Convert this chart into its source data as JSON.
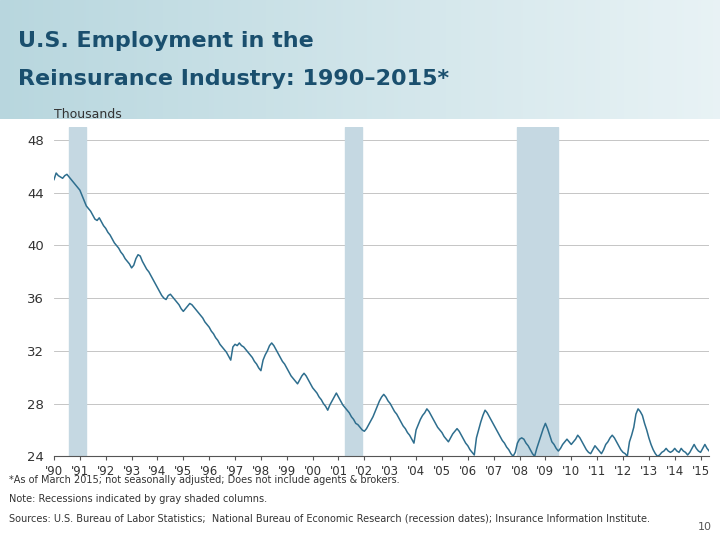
{
  "title_line1": "U.S. Employment in the",
  "title_line2": "Reinsurance Industry: 1990–2015*",
  "ylabel": "Thousands",
  "footnote1": "*As of March 2015; not seasonally adjusted; Does not include agents & brokers.",
  "footnote2": "Note: Recessions indicated by gray shaded columns.",
  "footnote3": "Sources: U.S. Bureau of Labor Statistics;  National Bureau of Economic Research (recession dates); Insurance Information Institute.",
  "page_num": "10",
  "line_color": "#2E6E8E",
  "line_width": 1.1,
  "recession_color": "#C5D8E2",
  "recession_alpha": 1.0,
  "recessions": [
    {
      "start": 1990.583,
      "end": 1991.25
    },
    {
      "start": 2001.25,
      "end": 2001.916
    },
    {
      "start": 2007.916,
      "end": 2009.5
    }
  ],
  "ylim": [
    24,
    49
  ],
  "yticks": [
    24,
    28,
    32,
    36,
    40,
    44,
    48
  ],
  "xlim_start": 1990.0,
  "xlim_end": 2015.333,
  "xtick_years": [
    1990,
    1991,
    1992,
    1993,
    1994,
    1995,
    1996,
    1997,
    1998,
    1999,
    2000,
    2001,
    2002,
    2003,
    2004,
    2005,
    2006,
    2007,
    2008,
    2009,
    2010,
    2011,
    2012,
    2013,
    2014,
    2015
  ],
  "xtick_labels": [
    "'90",
    "'91",
    "'92",
    "'93",
    "'94",
    "'95",
    "'96",
    "'97",
    "'98",
    "'99",
    "'00",
    "'01",
    "'02",
    "'03",
    "'04",
    "'05",
    "'06",
    "'07",
    "'08",
    "'09",
    "'10",
    "'11",
    "'12",
    "'13",
    "'14",
    "'15"
  ],
  "bg_color": "#FFFFFF",
  "employment_data": [
    45.0,
    45.5,
    45.3,
    45.2,
    45.1,
    45.3,
    45.4,
    45.2,
    45.0,
    44.8,
    44.6,
    44.4,
    44.2,
    43.8,
    43.4,
    43.0,
    42.8,
    42.6,
    42.3,
    42.0,
    41.9,
    42.1,
    41.8,
    41.5,
    41.3,
    41.0,
    40.8,
    40.5,
    40.2,
    40.0,
    39.8,
    39.5,
    39.3,
    39.0,
    38.8,
    38.6,
    38.3,
    38.5,
    39.0,
    39.3,
    39.2,
    38.8,
    38.5,
    38.2,
    38.0,
    37.7,
    37.4,
    37.1,
    36.8,
    36.5,
    36.2,
    36.0,
    35.9,
    36.2,
    36.3,
    36.1,
    35.9,
    35.7,
    35.5,
    35.2,
    35.0,
    35.2,
    35.4,
    35.6,
    35.5,
    35.3,
    35.1,
    34.9,
    34.7,
    34.5,
    34.2,
    34.0,
    33.8,
    33.5,
    33.3,
    33.0,
    32.8,
    32.5,
    32.3,
    32.1,
    31.9,
    31.6,
    31.3,
    32.3,
    32.5,
    32.4,
    32.6,
    32.4,
    32.3,
    32.1,
    31.9,
    31.7,
    31.5,
    31.2,
    31.0,
    30.7,
    30.5,
    31.3,
    31.7,
    32.0,
    32.4,
    32.6,
    32.4,
    32.1,
    31.8,
    31.5,
    31.2,
    31.0,
    30.7,
    30.4,
    30.1,
    29.9,
    29.7,
    29.5,
    29.8,
    30.1,
    30.3,
    30.1,
    29.8,
    29.5,
    29.2,
    29.0,
    28.8,
    28.5,
    28.3,
    28.0,
    27.8,
    27.5,
    27.9,
    28.2,
    28.5,
    28.8,
    28.5,
    28.2,
    27.9,
    27.7,
    27.5,
    27.3,
    27.0,
    26.8,
    26.5,
    26.4,
    26.2,
    26.0,
    25.9,
    26.1,
    26.4,
    26.7,
    27.0,
    27.4,
    27.8,
    28.2,
    28.5,
    28.7,
    28.5,
    28.2,
    28.0,
    27.7,
    27.4,
    27.2,
    26.9,
    26.6,
    26.3,
    26.1,
    25.8,
    25.6,
    25.3,
    25.0,
    26.0,
    26.4,
    26.8,
    27.1,
    27.3,
    27.6,
    27.4,
    27.1,
    26.8,
    26.5,
    26.2,
    26.0,
    25.8,
    25.5,
    25.3,
    25.1,
    25.4,
    25.7,
    25.9,
    26.1,
    25.9,
    25.6,
    25.3,
    25.0,
    24.8,
    24.5,
    24.3,
    24.1,
    25.4,
    26.0,
    26.6,
    27.1,
    27.5,
    27.3,
    27.0,
    26.7,
    26.4,
    26.1,
    25.8,
    25.5,
    25.2,
    25.0,
    24.7,
    24.5,
    24.2,
    24.0,
    24.3,
    25.0,
    25.3,
    25.4,
    25.3,
    25.0,
    24.8,
    24.5,
    24.2,
    24.0,
    24.6,
    25.1,
    25.6,
    26.1,
    26.5,
    26.1,
    25.6,
    25.1,
    24.9,
    24.6,
    24.4,
    24.6,
    24.9,
    25.1,
    25.3,
    25.1,
    24.9,
    25.1,
    25.3,
    25.6,
    25.4,
    25.1,
    24.8,
    24.5,
    24.3,
    24.2,
    24.5,
    24.8,
    24.6,
    24.4,
    24.2,
    24.5,
    24.9,
    25.1,
    25.4,
    25.6,
    25.4,
    25.1,
    24.8,
    24.5,
    24.3,
    24.2,
    24.0,
    25.1,
    25.6,
    26.2,
    27.2,
    27.6,
    27.4,
    27.1,
    26.5,
    26.0,
    25.4,
    24.9,
    24.5,
    24.2,
    24.0,
    24.1,
    24.3,
    24.4,
    24.6,
    24.4,
    24.3,
    24.4,
    24.6,
    24.4,
    24.3,
    24.6,
    24.4,
    24.3,
    24.1,
    24.3,
    24.6,
    24.9,
    24.6,
    24.4,
    24.3,
    24.6,
    24.9,
    24.6,
    24.4
  ]
}
